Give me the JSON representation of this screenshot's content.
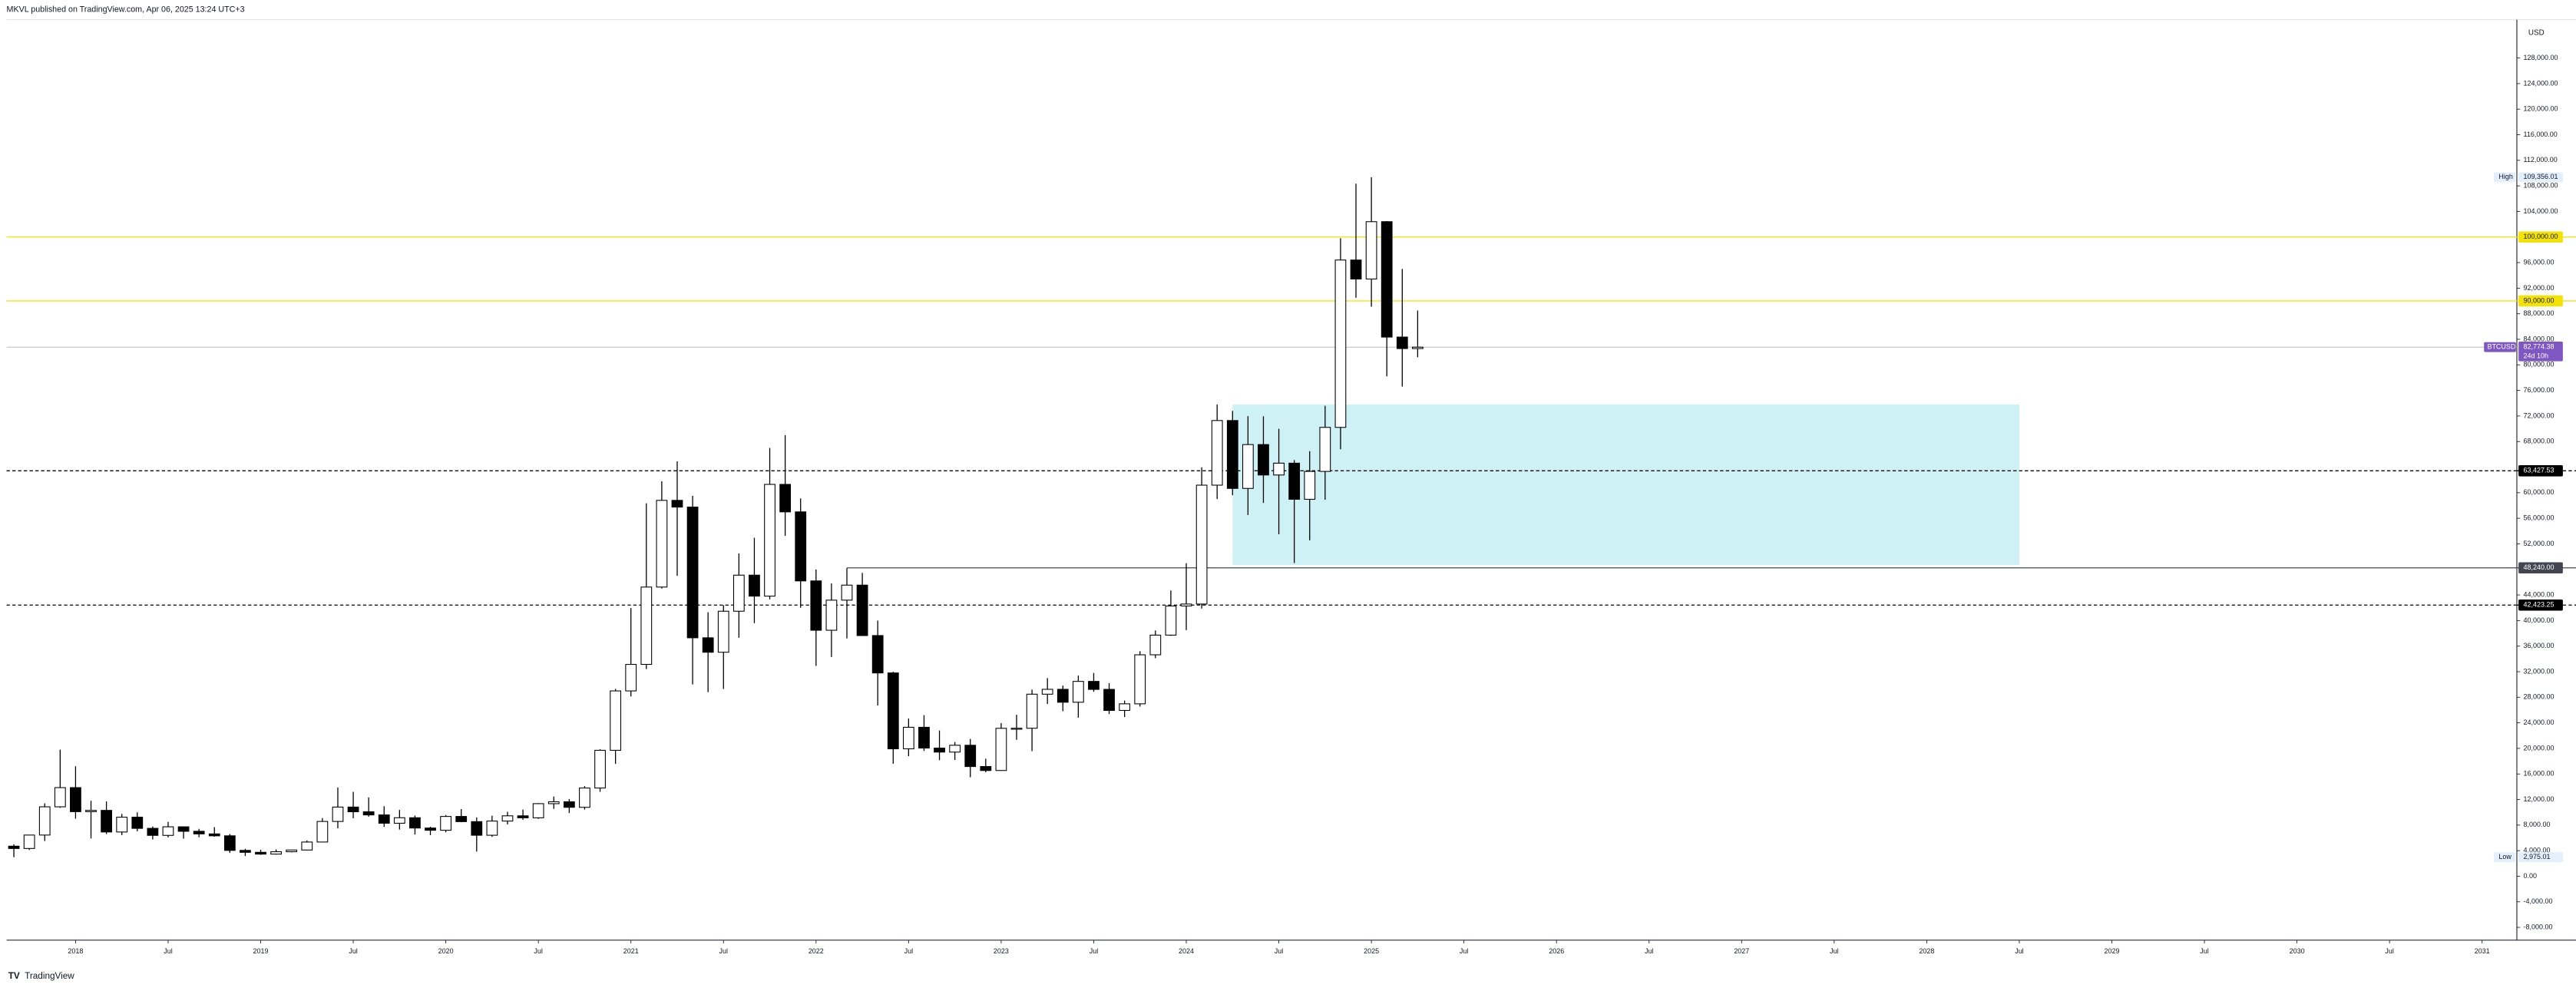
{
  "header": {
    "title": "MKVL published on TradingView.com, Apr 06, 2025 13:24 UTC+3"
  },
  "footer": {
    "brand": "TradingView"
  },
  "chart_data": {
    "type": "candlestick",
    "currency": "USD",
    "x": [
      "2017-09",
      "2017-10",
      "2017-11",
      "2017-12",
      "2018-01",
      "2018-02",
      "2018-03",
      "2018-04",
      "2018-05",
      "2018-06",
      "2018-07",
      "2018-08",
      "2018-09",
      "2018-10",
      "2018-11",
      "2018-12",
      "2019-01",
      "2019-02",
      "2019-03",
      "2019-04",
      "2019-05",
      "2019-06",
      "2019-07",
      "2019-08",
      "2019-09",
      "2019-10",
      "2019-11",
      "2019-12",
      "2020-01",
      "2020-02",
      "2020-03",
      "2020-04",
      "2020-05",
      "2020-06",
      "2020-07",
      "2020-08",
      "2020-09",
      "2020-10",
      "2020-11",
      "2020-12",
      "2021-01",
      "2021-02",
      "2021-03",
      "2021-04",
      "2021-05",
      "2021-06",
      "2021-07",
      "2021-08",
      "2021-09",
      "2021-10",
      "2021-11",
      "2021-12",
      "2022-01",
      "2022-02",
      "2022-03",
      "2022-04",
      "2022-05",
      "2022-06",
      "2022-07",
      "2022-08",
      "2022-09",
      "2022-10",
      "2022-11",
      "2022-12",
      "2023-01",
      "2023-02",
      "2023-03",
      "2023-04",
      "2023-05",
      "2023-06",
      "2023-07",
      "2023-08",
      "2023-09",
      "2023-10",
      "2023-11",
      "2023-12",
      "2024-01",
      "2024-02",
      "2024-03",
      "2024-04",
      "2024-05",
      "2024-06",
      "2024-07",
      "2024-08",
      "2024-09",
      "2024-10",
      "2024-11",
      "2024-12",
      "2025-01",
      "2025-02",
      "2025-03",
      "2025-04"
    ],
    "open": [
      4700,
      4340,
      6440,
      10860,
      13860,
      10100,
      10300,
      6920,
      9240,
      7490,
      6390,
      7730,
      7030,
      6620,
      6320,
      4040,
      3740,
      3460,
      3830,
      4100,
      5350,
      8570,
      10820,
      10080,
      9590,
      8290,
      9150,
      7540,
      7190,
      9350,
      8540,
      6410,
      8630,
      9450,
      9140,
      11350,
      11650,
      10780,
      13800,
      19700,
      28990,
      33140,
      45240,
      58800,
      57750,
      37300,
      35040,
      41460,
      47100,
      43820,
      61300,
      57000,
      46200,
      38480,
      43190,
      45540,
      37650,
      31800,
      19930,
      23300,
      20050,
      19420,
      20490,
      17160,
      16540,
      23140,
      23150,
      28480,
      29240,
      27220,
      30480,
      29230,
      25940,
      26970,
      34640,
      37720,
      42280,
      42580,
      61180,
      71290,
      60670,
      67530,
      62770,
      64620,
      58970,
      63330,
      70220,
      96400,
      93430,
      102400,
      84350,
      82550
    ],
    "high": [
      5000,
      6450,
      11400,
      19800,
      17200,
      11800,
      11700,
      9750,
      9990,
      7780,
      8500,
      7760,
      7410,
      7680,
      6600,
      4300,
      4140,
      4200,
      4140,
      5600,
      9100,
      13880,
      13200,
      12330,
      10950,
      10370,
      9500,
      7740,
      9580,
      10500,
      9190,
      9470,
      10080,
      10430,
      11440,
      12470,
      12070,
      14100,
      19860,
      29300,
      41950,
      58350,
      61780,
      64900,
      59500,
      41300,
      42400,
      50500,
      52950,
      67000,
      69000,
      59100,
      47990,
      45800,
      48200,
      47450,
      40000,
      31990,
      24670,
      25200,
      22800,
      20990,
      21480,
      18390,
      23960,
      25250,
      29200,
      31000,
      29820,
      31390,
      31800,
      30200,
      27480,
      35200,
      38450,
      44700,
      48970,
      63980,
      73800,
      72800,
      71980,
      71950,
      70000,
      65100,
      66500,
      73600,
      99800,
      108350,
      109356.01,
      102500,
      95000,
      88500
    ],
    "low": [
      2975.01,
      4100,
      5500,
      10700,
      9000,
      5900,
      6600,
      6430,
      7030,
      5750,
      6070,
      5880,
      6100,
      6180,
      3650,
      3160,
      3350,
      3380,
      3730,
      4050,
      5330,
      7500,
      9070,
      9320,
      7730,
      7300,
      6520,
      6430,
      6870,
      8450,
      3850,
      6150,
      8100,
      8830,
      8970,
      10540,
      9880,
      10430,
      13200,
      17570,
      28130,
      32400,
      45000,
      47000,
      30000,
      28800,
      29300,
      37300,
      39600,
      43300,
      53250,
      42000,
      32900,
      34300,
      37200,
      37580,
      26700,
      17600,
      18780,
      19600,
      18150,
      18190,
      15480,
      16260,
      16500,
      21350,
      19570,
      26940,
      25810,
      24800,
      28860,
      25370,
      24900,
      26540,
      34110,
      37600,
      38500,
      41880,
      59000,
      59600,
      56500,
      58400,
      53500,
      49000,
      52550,
      58900,
      66800,
      90500,
      89100,
      78200,
      76600,
      81200
    ],
    "close": [
      4340,
      6440,
      10860,
      13860,
      10100,
      10300,
      6920,
      9240,
      7490,
      6390,
      7730,
      7030,
      6620,
      6320,
      4040,
      3740,
      3460,
      3830,
      4100,
      5350,
      8570,
      10820,
      10080,
      9590,
      8290,
      9150,
      7540,
      7190,
      9350,
      8540,
      6410,
      8630,
      9450,
      9140,
      11350,
      11650,
      10780,
      13800,
      19700,
      28990,
      33140,
      45240,
      58800,
      57750,
      37300,
      35040,
      41460,
      47100,
      43820,
      61300,
      57000,
      46200,
      38480,
      43190,
      45540,
      37650,
      31800,
      19930,
      23300,
      20050,
      19420,
      20490,
      17160,
      16540,
      23140,
      23150,
      28480,
      29240,
      27220,
      30480,
      29230,
      25940,
      26970,
      34640,
      37720,
      42280,
      42580,
      61180,
      71290,
      60670,
      67530,
      62770,
      64620,
      58970,
      63330,
      70220,
      96400,
      93430,
      102400,
      84350,
      82550,
      82774.38
    ],
    "up_color": "#ffffff",
    "down_color": "#000000",
    "wick_color": "#000000",
    "ylim": [
      -10000,
      134000
    ],
    "yticks": [
      {
        "value": -8000,
        "label": "-8,000.00"
      },
      {
        "value": -4000,
        "label": "-4,000.00"
      },
      {
        "value": 0,
        "label": "0.00"
      },
      {
        "value": 4000,
        "label": "4,000.00"
      },
      {
        "value": 8000,
        "label": "8,000.00"
      },
      {
        "value": 12000,
        "label": "12,000.00"
      },
      {
        "value": 16000,
        "label": "16,000.00"
      },
      {
        "value": 20000,
        "label": "20,000.00"
      },
      {
        "value": 24000,
        "label": "24,000.00"
      },
      {
        "value": 28000,
        "label": "28,000.00"
      },
      {
        "value": 32000,
        "label": "32,000.00"
      },
      {
        "value": 36000,
        "label": "36,000.00"
      },
      {
        "value": 40000,
        "label": "40,000.00"
      },
      {
        "value": 44000,
        "label": "44,000.00"
      },
      {
        "value": 52000,
        "label": "52,000.00"
      },
      {
        "value": 56000,
        "label": "56,000.00"
      },
      {
        "value": 60000,
        "label": "60,000.00"
      },
      {
        "value": 68000,
        "label": "68,000.00"
      },
      {
        "value": 72000,
        "label": "72,000.00"
      },
      {
        "value": 76000,
        "label": "76,000.00"
      },
      {
        "value": 80000,
        "label": "80,000.00"
      },
      {
        "value": 84000,
        "label": "84,000.00"
      },
      {
        "value": 88000,
        "label": "88,000.00"
      },
      {
        "value": 92000,
        "label": "92,000.00"
      },
      {
        "value": 96000,
        "label": "96,000.00"
      },
      {
        "value": 104000,
        "label": "104,000.00"
      },
      {
        "value": 108000,
        "label": "108,000.00"
      },
      {
        "value": 112000,
        "label": "112,000.00"
      },
      {
        "value": 116000,
        "label": "116,000.00"
      },
      {
        "value": 120000,
        "label": "120,000.00"
      },
      {
        "value": 124000,
        "label": "124,000.00"
      },
      {
        "value": 128000,
        "label": "128,000.00"
      }
    ],
    "xticks": [
      {
        "value": "2018-01",
        "label": "2018"
      },
      {
        "value": "2018-07",
        "label": "Jul"
      },
      {
        "value": "2019-01",
        "label": "2019"
      },
      {
        "value": "2019-07",
        "label": "Jul"
      },
      {
        "value": "2020-01",
        "label": "2020"
      },
      {
        "value": "2020-07",
        "label": "Jul"
      },
      {
        "value": "2021-01",
        "label": "2021"
      },
      {
        "value": "2021-07",
        "label": "Jul"
      },
      {
        "value": "2022-01",
        "label": "2022"
      },
      {
        "value": "2022-07",
        "label": "Jul"
      },
      {
        "value": "2023-01",
        "label": "2023"
      },
      {
        "value": "2023-07",
        "label": "Jul"
      },
      {
        "value": "2024-01",
        "label": "2024"
      },
      {
        "value": "2024-07",
        "label": "Jul"
      },
      {
        "value": "2025-01",
        "label": "2025"
      },
      {
        "value": "2025-07",
        "label": "Jul"
      },
      {
        "value": "2026-01",
        "label": "2026"
      },
      {
        "value": "2026-07",
        "label": "Jul"
      },
      {
        "value": "2027-01",
        "label": "2027"
      },
      {
        "value": "2027-07",
        "label": "Jul"
      },
      {
        "value": "2028-01",
        "label": "2028"
      },
      {
        "value": "2028-07",
        "label": "Jul"
      },
      {
        "value": "2029-01",
        "label": "2029"
      },
      {
        "value": "2029-07",
        "label": "Jul"
      },
      {
        "value": "2030-01",
        "label": "2030"
      },
      {
        "value": "2030-07",
        "label": "Jul"
      },
      {
        "value": "2031-01",
        "label": "2031"
      }
    ],
    "levels": [
      {
        "value": 100000,
        "label": "100,000.00",
        "color": "#f2e205",
        "style": "solid"
      },
      {
        "value": 90000,
        "label": "90,000.00",
        "color": "#f2e205",
        "style": "solid"
      },
      {
        "value": 63427.53,
        "label": "63,427.53",
        "color": "#000000",
        "style": "dashed"
      },
      {
        "value": 48240,
        "label": "48,240.00",
        "color": "#434651",
        "style": "solid",
        "start": "2022-03"
      },
      {
        "value": 42423.25,
        "label": "42,423.25",
        "color": "#000000",
        "style": "dashed"
      }
    ],
    "zone": {
      "x": [
        "2024-04",
        "2028-07"
      ],
      "y": [
        48700,
        73800
      ],
      "color": "#cdf1f4"
    },
    "extremes": [
      {
        "name": "High",
        "value": 109356.01,
        "label": "109,356.01"
      },
      {
        "name": "Low",
        "value": 2975.01,
        "label": "2,975.01"
      }
    ],
    "last_price": {
      "name": "BTCUSD",
      "label": "82,774.38",
      "countdown": "24d 10h",
      "color": "#7e57c2"
    }
  }
}
